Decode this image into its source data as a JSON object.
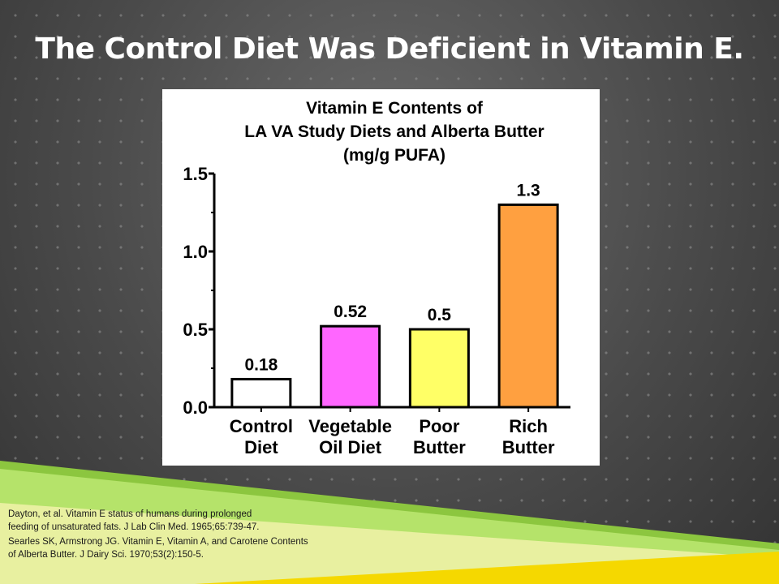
{
  "slide": {
    "title": "The Control Diet Was Deficient in Vitamin E."
  },
  "references": [
    {
      "line1": "Dayton, et al.  Vitamin E status of humans during prolonged",
      "line2": "feeding of unsaturated fats.  J Lab Clin Med. 1965;65:739-47."
    },
    {
      "line1": "Searles SK, Armstrong JG.  Vitamin E, Vitamin A, and Carotene Contents",
      "line2": "of Alberta Butter.  J Dairy Sci. 1970;53(2):150-5."
    }
  ],
  "chart_data": {
    "type": "bar",
    "title_lines": [
      "Vitamin E Contents of",
      "LA VA Study Diets and Alberta Butter",
      "(mg/g PUFA)"
    ],
    "categories": [
      [
        "Control",
        "Diet"
      ],
      [
        "Vegetable",
        "Oil Diet"
      ],
      [
        "Poor",
        "Butter"
      ],
      [
        "Rich",
        "Butter"
      ]
    ],
    "values": [
      0.18,
      0.52,
      0.5,
      1.3
    ],
    "data_labels": [
      "0.18",
      "0.52",
      "0.5",
      "1.3"
    ],
    "colors": [
      "#ffffff",
      "#ff66ff",
      "#ffff66",
      "#ffa040"
    ],
    "ylim": [
      0,
      1.5
    ],
    "yticks": [
      "0.0",
      "0.5",
      "1.0",
      "1.5"
    ],
    "xlabel": "",
    "ylabel": ""
  }
}
